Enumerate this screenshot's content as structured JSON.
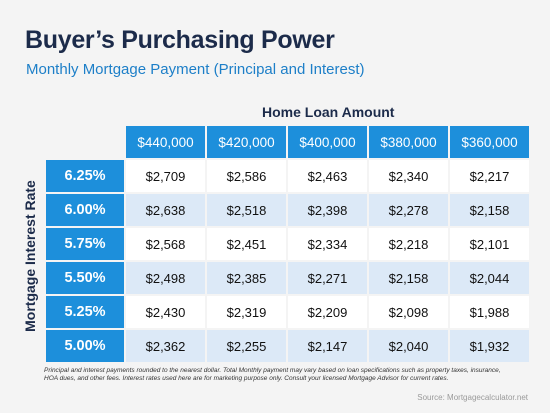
{
  "chart_data": {
    "type": "table",
    "title": "Buyer’s Purchasing Power",
    "subtitle": "Monthly Mortgage Payment (Principal and Interest)",
    "column_heading": "Home Loan Amount",
    "row_heading": "Mortgage Interest Rate",
    "columns": [
      "$440,000",
      "$420,000",
      "$400,000",
      "$380,000",
      "$360,000"
    ],
    "rows": [
      {
        "rate": "6.25%",
        "values": [
          "$2,709",
          "$2,586",
          "$2,463",
          "$2,340",
          "$2,217"
        ]
      },
      {
        "rate": "6.00%",
        "values": [
          "$2,638",
          "$2,518",
          "$2,398",
          "$2,278",
          "$2,158"
        ]
      },
      {
        "rate": "5.75%",
        "values": [
          "$2,568",
          "$2,451",
          "$2,334",
          "$2,218",
          "$2,101"
        ]
      },
      {
        "rate": "5.50%",
        "values": [
          "$2,498",
          "$2,385",
          "$2,271",
          "$2,158",
          "$2,044"
        ]
      },
      {
        "rate": "5.25%",
        "values": [
          "$2,430",
          "$2,319",
          "$2,209",
          "$2,098",
          "$1,988"
        ]
      },
      {
        "rate": "5.00%",
        "values": [
          "$2,362",
          "$2,255",
          "$2,147",
          "$2,040",
          "$1,932"
        ]
      }
    ],
    "footnote": "Principal and interest payments rounded to the nearest dollar. Total Monthly payment may vary based on loan specifications such as property taxes, insurance, HOA dues, and other fees. Interest rates used here are for marketing purpose only. Consult your licensed Mortgage Advisor for current rates.",
    "source": "Source: Mortgagecalculator.net"
  },
  "colors": {
    "header_blue": "#1d8fdb",
    "title_navy": "#1c2b4a",
    "subtitle_blue": "#1d7fc8",
    "band_light": "#dce9f7",
    "band_white": "#ffffff"
  }
}
